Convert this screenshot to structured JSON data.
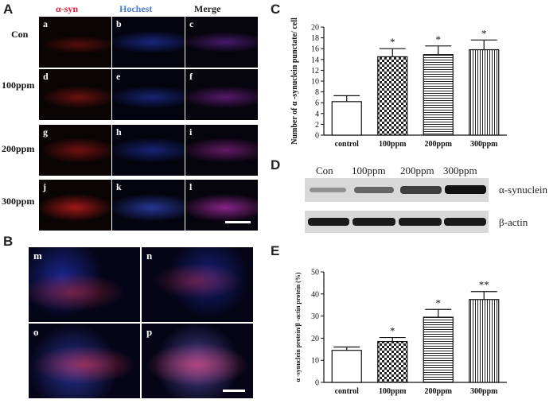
{
  "panel_labels": [
    "A",
    "B",
    "C",
    "D",
    "E"
  ],
  "panelA": {
    "headers": [
      {
        "text": "α-syn",
        "color": "#e0203a"
      },
      {
        "text": "Hochest",
        "color": "#4a7fd0"
      },
      {
        "text": "Merge",
        "color": "#222222"
      }
    ],
    "rows": [
      {
        "label": "Con",
        "cells": [
          "a",
          "b",
          "c"
        ]
      },
      {
        "label": "100ppm",
        "cells": [
          "d",
          "e",
          "f"
        ]
      },
      {
        "label": "200ppm",
        "cells": [
          "g",
          "h",
          "i"
        ]
      },
      {
        "label": "300ppm",
        "cells": [
          "j",
          "k",
          "l"
        ]
      }
    ]
  },
  "panelB": {
    "cells": [
      "m",
      "n",
      "o",
      "p"
    ]
  },
  "panelD": {
    "lanes": [
      "Con",
      "100ppm",
      "200ppm",
      "300ppm"
    ],
    "rows": [
      {
        "label": "α-synuclein",
        "intensity": [
          0.35,
          0.55,
          0.8,
          0.95
        ]
      },
      {
        "label": "β-actin",
        "intensity": [
          0.85,
          0.85,
          0.85,
          0.85
        ]
      }
    ]
  },
  "chart_data": [
    {
      "type": "bar",
      "panel": "C",
      "categories": [
        "control",
        "100ppm",
        "200ppm",
        "300ppm"
      ],
      "values": [
        6.2,
        14.5,
        14.9,
        15.8
      ],
      "errors": [
        1.1,
        1.5,
        1.6,
        1.8
      ],
      "significance": [
        "",
        "*",
        "*",
        "*"
      ],
      "fills": [
        "plain",
        "checker",
        "horizontal",
        "vertical"
      ],
      "xlabel": "",
      "ylabel": "Number of α -synuclein punctate/ cell",
      "ylim": [
        0,
        20
      ],
      "yticks": [
        0,
        2,
        4,
        6,
        8,
        10,
        12,
        14,
        16,
        18,
        20
      ],
      "grid": false
    },
    {
      "type": "bar",
      "panel": "E",
      "categories": [
        "control",
        "100ppm",
        "200ppm",
        "300ppm"
      ],
      "values": [
        14.5,
        18.5,
        29.5,
        37.5
      ],
      "errors": [
        1.5,
        1.8,
        3.5,
        3.6
      ],
      "significance": [
        "",
        "*",
        "*",
        "**"
      ],
      "fills": [
        "plain",
        "checker",
        "horizontal",
        "vertical"
      ],
      "xlabel": "",
      "ylabel": "α -synuclein protein/β -actin protein (%)",
      "ylim": [
        0,
        50
      ],
      "yticks": [
        0,
        10,
        20,
        30,
        40,
        50
      ],
      "grid": false
    }
  ]
}
